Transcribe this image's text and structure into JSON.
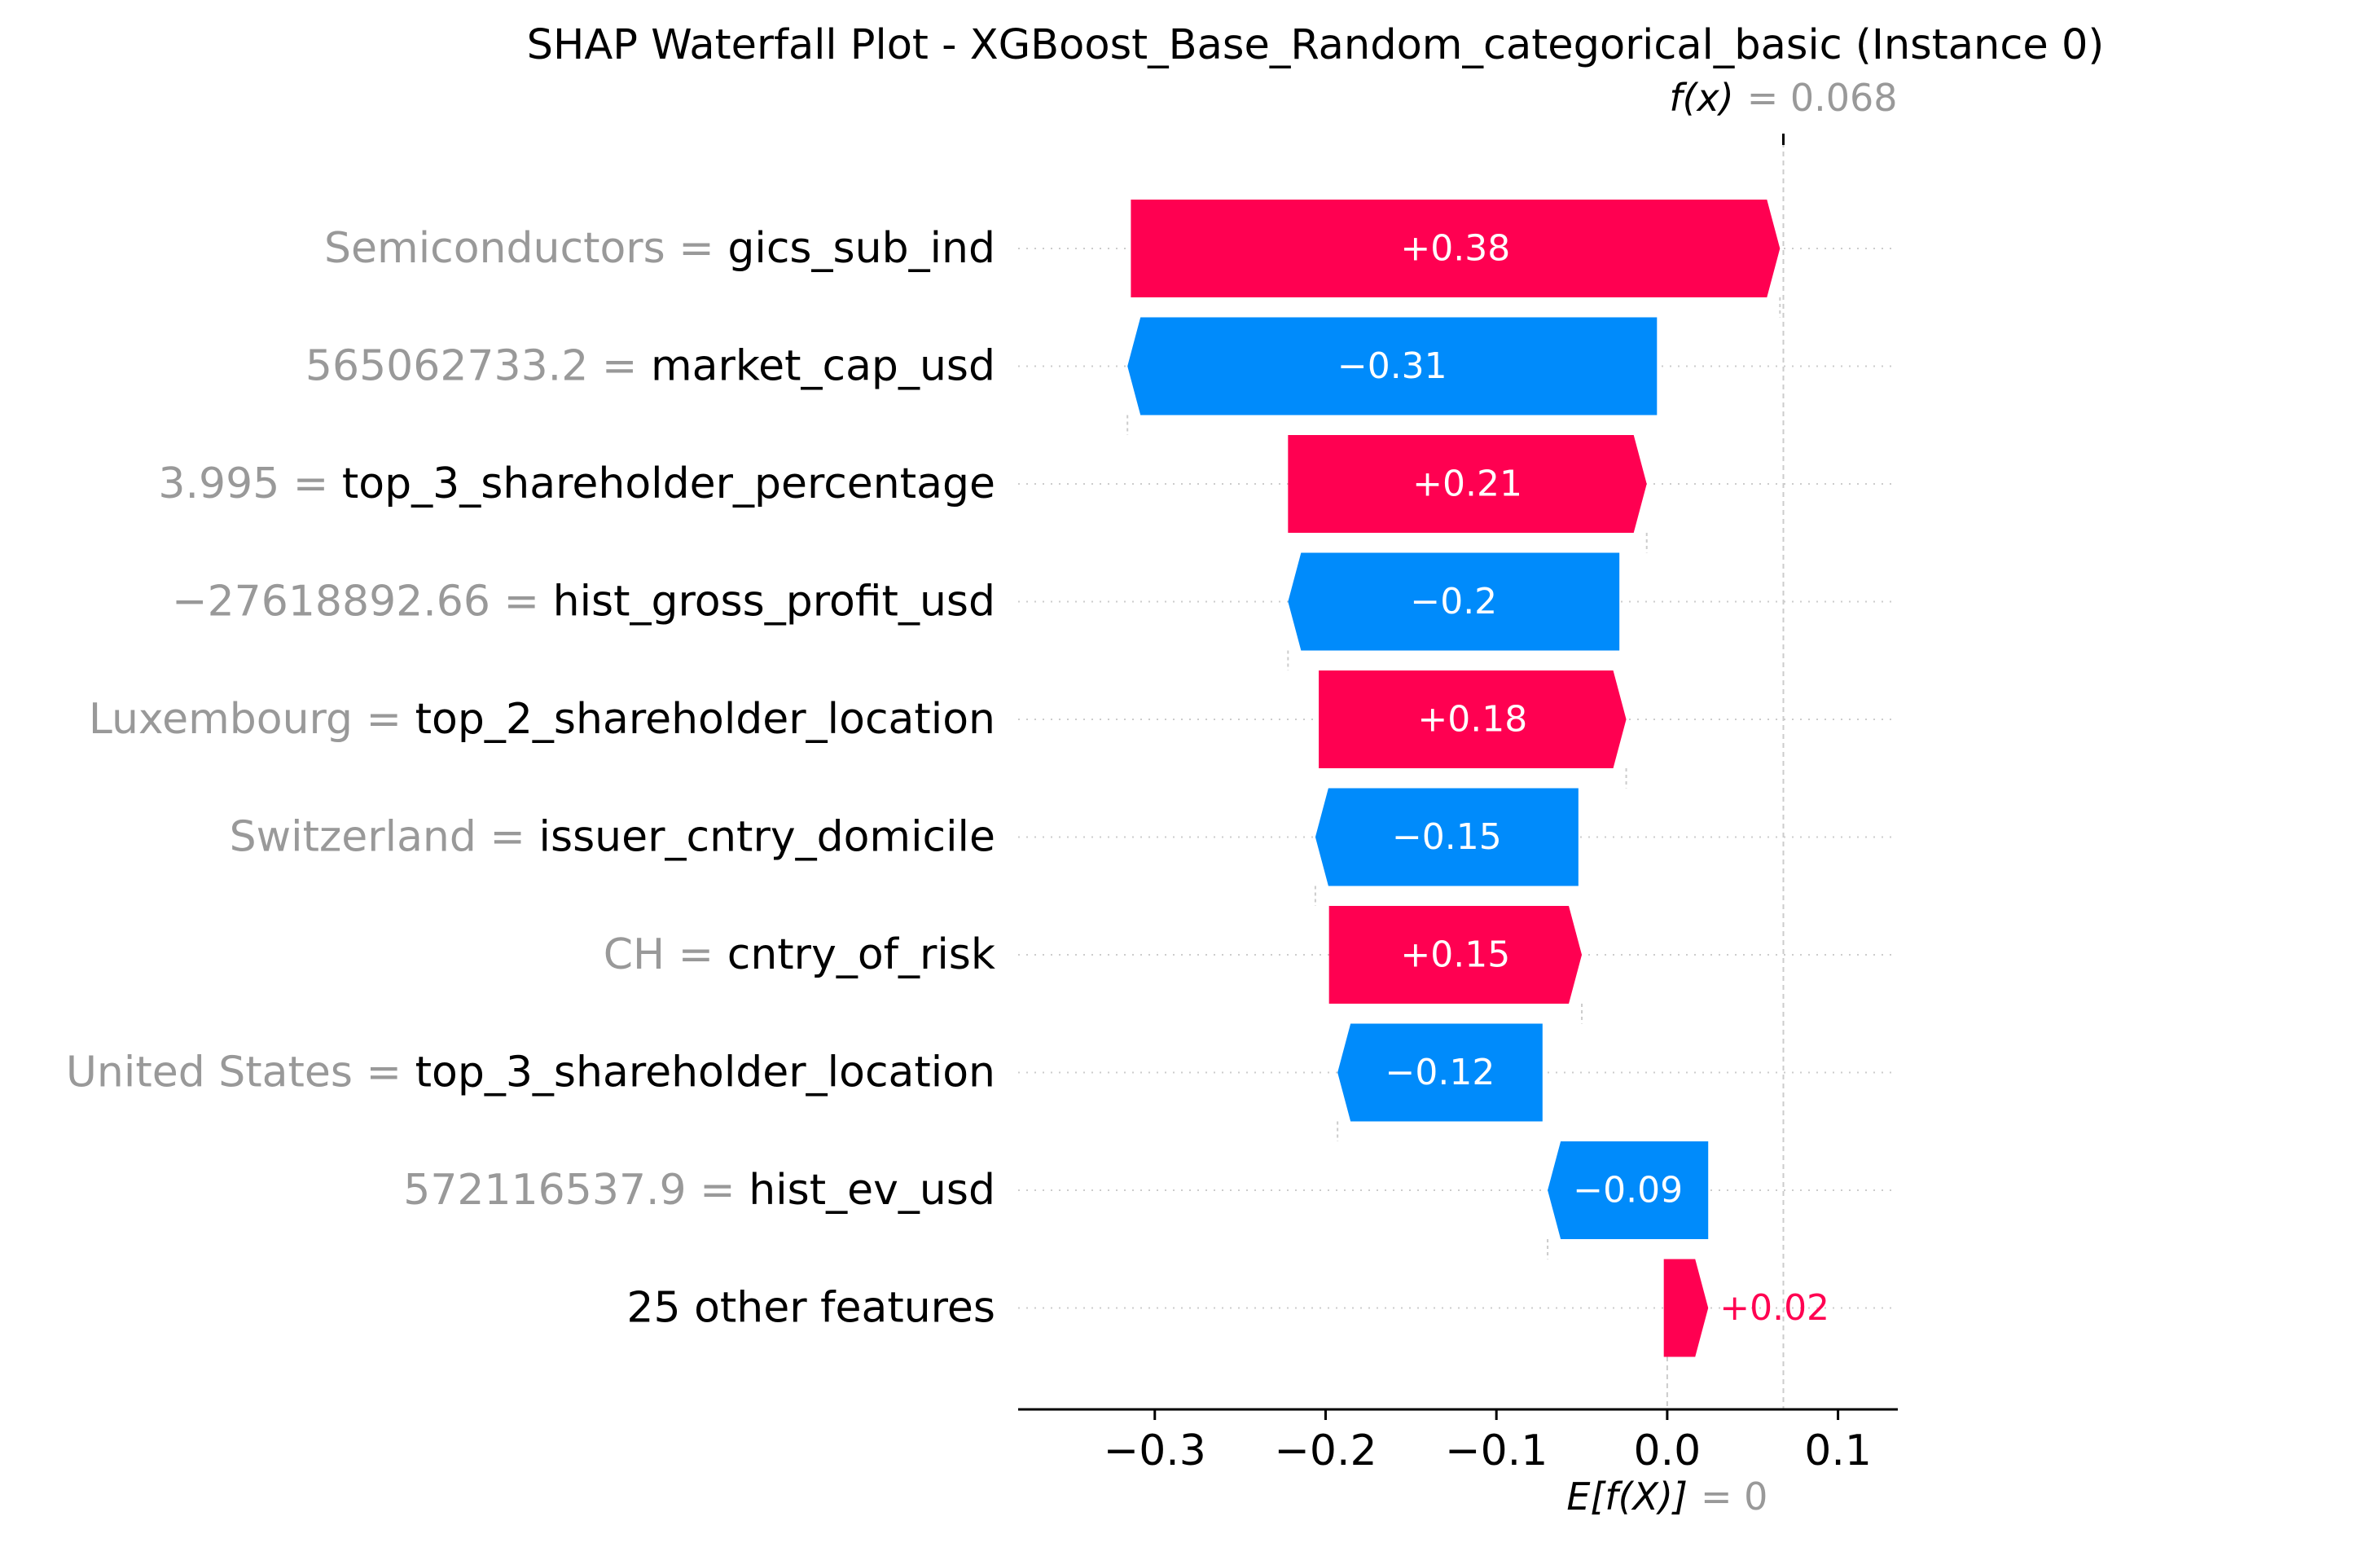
{
  "chart_data": {
    "type": "waterfall",
    "title": "SHAP Waterfall Plot - XGBoost_Base_Random_categorical_basic (Instance 0)",
    "base_value": 0,
    "output_value": 0.068,
    "fx_label": "f(x)",
    "fx_value_text": "= 0.068",
    "ex_label": "E[f(X)]",
    "ex_value_text": "= 0",
    "xlim": [
      -0.38,
      0.135
    ],
    "xticks": [
      -0.3,
      -0.2,
      -0.1,
      0.0,
      0.1
    ],
    "xtick_labels": [
      "−0.3",
      "−0.2",
      "−0.1",
      "0.0",
      "0.1"
    ],
    "colors": {
      "positive": "#ff0051",
      "negative": "#008bfb",
      "feature_value_text": "#999999",
      "feature_name_text": "#000000",
      "grid": "#cccccc"
    },
    "rows": [
      {
        "feature_value": "Semiconductors",
        "feature_name": "gics_sub_ind",
        "shap": 0.38,
        "label": "+0.38"
      },
      {
        "feature_value": "565062733.2",
        "feature_name": "market_cap_usd",
        "shap": -0.31,
        "label": "−0.31"
      },
      {
        "feature_value": "3.995",
        "feature_name": "top_3_shareholder_percentage",
        "shap": 0.21,
        "label": "+0.21"
      },
      {
        "feature_value": "−27618892.66",
        "feature_name": "hist_gross_profit_usd",
        "shap": -0.2,
        "label": "−0.2"
      },
      {
        "feature_value": "Luxembourg",
        "feature_name": "top_2_shareholder_location",
        "shap": 0.18,
        "label": "+0.18"
      },
      {
        "feature_value": "Switzerland",
        "feature_name": "issuer_cntry_domicile",
        "shap": -0.15,
        "label": "−0.15"
      },
      {
        "feature_value": "CH",
        "feature_name": "cntry_of_risk",
        "shap": 0.15,
        "label": "+0.15"
      },
      {
        "feature_value": "United States",
        "feature_name": "top_3_shareholder_location",
        "shap": -0.12,
        "label": "−0.12"
      },
      {
        "feature_value": "572116537.9",
        "feature_name": "hist_ev_usd",
        "shap": -0.09,
        "label": "−0.09"
      },
      {
        "feature_value": "",
        "feature_name": "25 other features",
        "shap": 0.02,
        "label": "+0.02"
      }
    ],
    "segments": [
      {
        "start": -0.314,
        "end": 0.066
      },
      {
        "start": -0.006,
        "end": -0.316
      },
      {
        "start": -0.222,
        "end": -0.012
      },
      {
        "start": -0.028,
        "end": -0.222
      },
      {
        "start": -0.204,
        "end": -0.024
      },
      {
        "start": -0.052,
        "end": -0.206
      },
      {
        "start": -0.198,
        "end": -0.05
      },
      {
        "spacer": true,
        "start": -0.073,
        "end": -0.193
      },
      {
        "start": 0.024,
        "end": -0.07
      },
      {
        "start": -0.002,
        "end": 0.024
      }
    ]
  }
}
